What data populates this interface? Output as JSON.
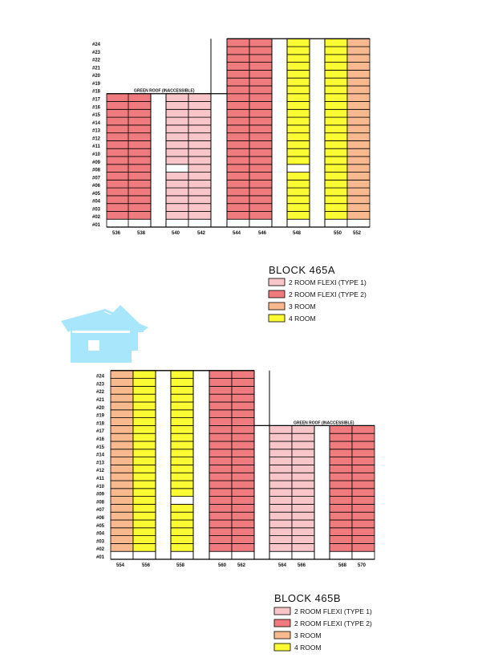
{
  "colors": {
    "flexi1": "#f8c5c8",
    "flexi2": "#f07b7f",
    "room3": "#f8b98f",
    "room4": "#fbfb33",
    "logo": "#a8e6fb"
  },
  "logo": {
    "icon": "house-icon"
  },
  "blocks": [
    {
      "name": "BLOCK 465A",
      "roof_label": "GREEN ROOF (INACCESSIBLE)",
      "floors": [
        "#01",
        "#02",
        "#03",
        "#04",
        "#05",
        "#06",
        "#07",
        "#08",
        "#09",
        "#10",
        "#11",
        "#12",
        "#13",
        "#14",
        "#15",
        "#16",
        "#17",
        "#18",
        "#19",
        "#20",
        "#21",
        "#22",
        "#23",
        "#24"
      ],
      "unit_labels": [
        "536",
        "538",
        "540",
        "542",
        "544",
        "546",
        "548",
        "550",
        "552"
      ],
      "legend": [
        {
          "label": "2 ROOM FLEXI (TYPE 1)",
          "type": "flexi1"
        },
        {
          "label": "2 ROOM FLEXI (TYPE 2)",
          "type": "flexi2"
        },
        {
          "label": "3 ROOM",
          "type": "room3"
        },
        {
          "label": "4 ROOM",
          "type": "room4"
        }
      ],
      "stacks": [
        {
          "unit": "536",
          "type": "flexi2",
          "top": 17,
          "blank": []
        },
        {
          "unit": "538",
          "type": "flexi2",
          "top": 17,
          "blank": []
        },
        {
          "unit": "540",
          "type": "flexi1",
          "top": 17,
          "blank": [
            8
          ]
        },
        {
          "unit": "542",
          "type": "flexi1",
          "top": 17,
          "blank": []
        },
        {
          "unit": "544",
          "type": "flexi2",
          "top": 24,
          "blank": []
        },
        {
          "unit": "546",
          "type": "flexi2",
          "top": 24,
          "blank": []
        },
        {
          "unit": "548",
          "type": "room4",
          "top": 24,
          "blank": [
            8
          ]
        },
        {
          "unit": "550",
          "type": "room4",
          "top": 24,
          "blank": []
        },
        {
          "unit": "552",
          "type": "room3",
          "top": 24,
          "blank": []
        }
      ]
    },
    {
      "name": "BLOCK 465B",
      "roof_label": "GREEN ROOF (INACCESSIBLE)",
      "floors": [
        "#01",
        "#02",
        "#03",
        "#04",
        "#05",
        "#06",
        "#07",
        "#08",
        "#09",
        "#10",
        "#11",
        "#12",
        "#13",
        "#14",
        "#15",
        "#16",
        "#17",
        "#18",
        "#19",
        "#20",
        "#21",
        "#22",
        "#23",
        "#24"
      ],
      "unit_labels": [
        "554",
        "556",
        "558",
        "560",
        "562",
        "564",
        "566",
        "568",
        "570"
      ],
      "legend": [
        {
          "label": "2 ROOM FLEXI (TYPE 1)",
          "type": "flexi1"
        },
        {
          "label": "2 ROOM FLEXI (TYPE 2)",
          "type": "flexi2"
        },
        {
          "label": "3 ROOM",
          "type": "room3"
        },
        {
          "label": "4 ROOM",
          "type": "room4"
        }
      ],
      "stacks": [
        {
          "unit": "554",
          "type": "room3",
          "top": 24,
          "blank": []
        },
        {
          "unit": "556",
          "type": "room4",
          "top": 24,
          "blank": []
        },
        {
          "unit": "558",
          "type": "room4",
          "top": 24,
          "blank": [
            8
          ]
        },
        {
          "unit": "560",
          "type": "flexi2",
          "top": 24,
          "blank": []
        },
        {
          "unit": "562",
          "type": "flexi2",
          "top": 24,
          "blank": []
        },
        {
          "unit": "564",
          "type": "flexi1",
          "top": 17,
          "blank": []
        },
        {
          "unit": "566",
          "type": "flexi1",
          "top": 17,
          "blank": []
        },
        {
          "unit": "568",
          "type": "flexi2",
          "top": 17,
          "blank": []
        },
        {
          "unit": "570",
          "type": "flexi2",
          "top": 17,
          "blank": []
        }
      ]
    }
  ]
}
